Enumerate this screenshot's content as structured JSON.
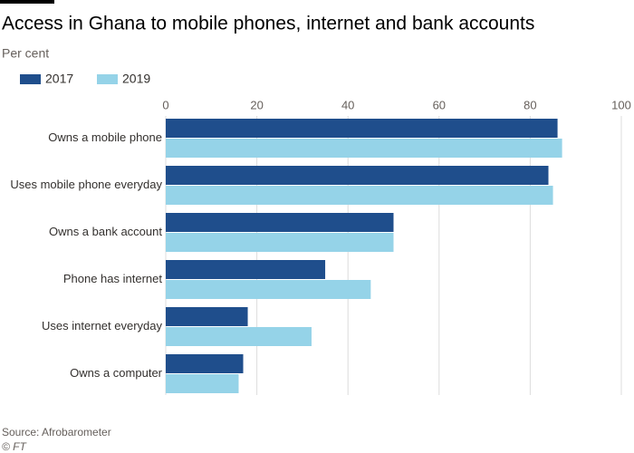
{
  "chart_data": {
    "type": "hbar",
    "title": "Access in Ghana to mobile phones, internet and bank accounts",
    "subtitle": "Per cent",
    "categories": [
      "Owns a mobile phone",
      "Uses mobile phone everyday",
      "Owns a bank account",
      "Phone has internet",
      "Uses internet everyday",
      "Owns a computer"
    ],
    "series": [
      {
        "name": "2017",
        "color": "#1f4e8c",
        "values": [
          86,
          84,
          50,
          35,
          18,
          17
        ]
      },
      {
        "name": "2019",
        "color": "#95d3e8",
        "values": [
          87,
          85,
          50,
          45,
          32,
          16
        ]
      }
    ],
    "xlim": [
      0,
      100
    ],
    "xticks": [
      0,
      20,
      40,
      60,
      80,
      100
    ],
    "grid": true,
    "source": "Source: Afrobarometer",
    "credit": "© FT"
  }
}
